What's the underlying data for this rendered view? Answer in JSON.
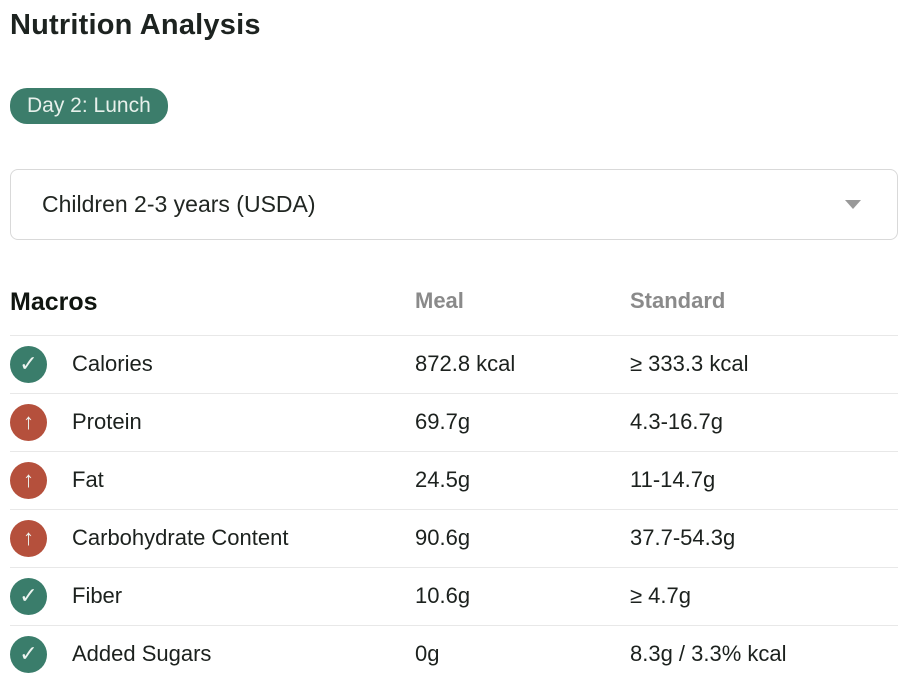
{
  "page": {
    "title": "Nutrition Analysis"
  },
  "badge": {
    "label": "Day 2: Lunch"
  },
  "standard_select": {
    "value": "Children 2-3 years (USDA)"
  },
  "table": {
    "headers": {
      "macros": "Macros",
      "meal": "Meal",
      "standard": "Standard"
    },
    "rows": [
      {
        "label": "Calories",
        "meal": "872.8 kcal",
        "standard": "≥ 333.3 kcal",
        "status": "ok"
      },
      {
        "label": "Protein",
        "meal": "69.7g",
        "standard": "4.3-16.7g",
        "status": "over"
      },
      {
        "label": "Fat",
        "meal": "24.5g",
        "standard": "11-14.7g",
        "status": "over"
      },
      {
        "label": "Carbohydrate Content",
        "meal": "90.6g",
        "standard": "37.7-54.3g",
        "status": "over"
      },
      {
        "label": "Fiber",
        "meal": "10.6g",
        "standard": "≥ 4.7g",
        "status": "ok"
      },
      {
        "label": "Added Sugars",
        "meal": "0g",
        "standard": "8.3g / 3.3% kcal",
        "status": "ok"
      }
    ]
  },
  "icons": {
    "ok": {
      "glyph": "✓",
      "color": "#3a7d6b",
      "name": "check-circle-icon"
    },
    "over": {
      "glyph": "↑",
      "color": "#b5503c",
      "name": "arrow-up-circle-icon"
    }
  },
  "colors": {
    "badge_bg": "#3c7d6b",
    "ok_green": "#3a7d6b",
    "over_red": "#b5503c",
    "divider": "#e8e8e8",
    "header_gray": "#8a8a8a"
  }
}
